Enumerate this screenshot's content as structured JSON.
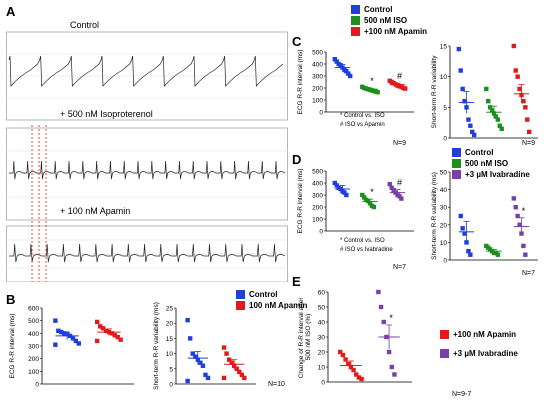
{
  "panels": {
    "A": {
      "label": "A",
      "traces": [
        "Control",
        "+ 500 nM Isoproterenol",
        "+ 100 nM Apamin"
      ]
    },
    "B": {
      "label": "B"
    },
    "C": {
      "label": "C"
    },
    "D": {
      "label": "D"
    },
    "E": {
      "label": "E"
    }
  },
  "legends": {
    "B": [
      {
        "label": "Control",
        "color": "#1f3fd8"
      },
      {
        "label": "100 nM Apamin",
        "color": "#e01b1b"
      }
    ],
    "C": [
      {
        "label": "Control",
        "color": "#1f3fd8"
      },
      {
        "label": "500 nM ISO",
        "color": "#1c8f1c"
      },
      {
        "label": "+100 nM Apamin",
        "color": "#e01b1b"
      }
    ],
    "D": [
      {
        "label": "Control",
        "color": "#1f3fd8"
      },
      {
        "label": "500 nM ISO",
        "color": "#1c8f1c"
      },
      {
        "label": "+3 µM Ivabradine",
        "color": "#7a3fa8"
      }
    ],
    "E": [
      {
        "label": "+100 nM Apamin",
        "color": "#e01b1b"
      },
      {
        "label": "+3 µM Ivabradine",
        "color": "#7a3fa8"
      }
    ]
  },
  "notes": {
    "C1": "* Control vs. ISO",
    "C2": "# ISO vs Apamin",
    "Cn1": "N=9",
    "Cn2": "N=9",
    "D1": "* Control vs. ISO",
    "D2": "# ISO vs Ivabradine",
    "Dn1": "N=7",
    "Dn2": "N=7",
    "Bn": "N=10",
    "En": "N=9-7"
  },
  "chart_data": [
    {
      "id": "B1",
      "type": "scatter",
      "ylabel": "ECG R-R interval (ms)",
      "ylim": [
        0,
        600
      ],
      "yticks": [
        0,
        100,
        200,
        300,
        400,
        500,
        600
      ],
      "groups": [
        {
          "color": "#1f3fd8",
          "values": [
            500,
            420,
            410,
            400,
            395,
            380,
            360,
            340,
            320,
            310
          ],
          "mean": 380,
          "sem": 30
        },
        {
          "color": "#e01b1b",
          "values": [
            490,
            455,
            440,
            420,
            410,
            400,
            385,
            370,
            350,
            340
          ],
          "mean": 410,
          "sem": 25
        }
      ]
    },
    {
      "id": "B2",
      "type": "scatter",
      "ylabel": "Short-term R-R variability (ms)",
      "ylim": [
        0,
        25
      ],
      "yticks": [
        0,
        5,
        10,
        15,
        20,
        25
      ],
      "groups": [
        {
          "color": "#1f3fd8",
          "values": [
            21,
            15,
            10,
            9,
            8,
            7,
            6,
            3,
            2,
            1
          ],
          "mean": 8.5,
          "sem": 2.2
        },
        {
          "color": "#e01b1b",
          "values": [
            12,
            10,
            8,
            7,
            6,
            5,
            4,
            3,
            2,
            2
          ],
          "mean": 6.5,
          "sem": 1.5
        }
      ]
    },
    {
      "id": "C1",
      "type": "scatter",
      "ylabel": "ECG R-R interval (ms)",
      "ylim": [
        0,
        500
      ],
      "yticks": [
        0,
        100,
        200,
        300,
        400,
        500
      ],
      "groups": [
        {
          "color": "#1f3fd8",
          "values": [
            440,
            420,
            400,
            390,
            370,
            350,
            340,
            320,
            300
          ],
          "mean": 370,
          "sem": 25,
          "sig": ""
        },
        {
          "color": "#1c8f1c",
          "values": [
            210,
            200,
            195,
            190,
            185,
            180,
            175,
            170,
            165
          ],
          "mean": 190,
          "sem": 10,
          "sig": "*"
        },
        {
          "color": "#e01b1b",
          "values": [
            260,
            250,
            240,
            230,
            220,
            215,
            210,
            200,
            195
          ],
          "mean": 228,
          "sem": 12,
          "sig": "#"
        }
      ]
    },
    {
      "id": "C2",
      "type": "scatter",
      "ylabel": "Short-term R-R variability",
      "ylim": [
        0,
        15
      ],
      "yticks": [
        0,
        5,
        10,
        15
      ],
      "groups": [
        {
          "color": "#1f3fd8",
          "values": [
            14.5,
            11,
            8,
            6,
            5,
            3,
            2,
            1,
            0.5
          ],
          "mean": 5.8,
          "sem": 1.8
        },
        {
          "color": "#1c8f1c",
          "values": [
            8,
            6,
            5,
            4.5,
            4,
            3.5,
            3,
            2,
            1.5
          ],
          "mean": 4.2,
          "sem": 1.0
        },
        {
          "color": "#e01b1b",
          "values": [
            15,
            11,
            10,
            8,
            7,
            6,
            5,
            3,
            1
          ],
          "mean": 7.2,
          "sem": 1.5
        }
      ]
    },
    {
      "id": "D1",
      "type": "scatter",
      "ylabel": "ECG R-R interval (ms)",
      "ylim": [
        0,
        500
      ],
      "yticks": [
        0,
        100,
        200,
        300,
        400,
        500
      ],
      "groups": [
        {
          "color": "#1f3fd8",
          "values": [
            400,
            380,
            360,
            350,
            330,
            320,
            300
          ],
          "mean": 350,
          "sem": 30,
          "sig": ""
        },
        {
          "color": "#1c8f1c",
          "values": [
            300,
            280,
            260,
            250,
            230,
            210,
            200
          ],
          "mean": 245,
          "sem": 20,
          "sig": "*"
        },
        {
          "color": "#7a3fa8",
          "values": [
            390,
            360,
            340,
            320,
            300,
            290,
            270
          ],
          "mean": 320,
          "sem": 25,
          "sig": "#"
        }
      ]
    },
    {
      "id": "D2",
      "type": "scatter",
      "ylabel": "Short-term R-R variability (ms)",
      "ylim": [
        0,
        50
      ],
      "yticks": [
        0,
        10,
        20,
        30,
        40,
        50
      ],
      "groups": [
        {
          "color": "#1f3fd8",
          "values": [
            48,
            25,
            18,
            15,
            10,
            5,
            3
          ],
          "mean": 16,
          "sem": 6,
          "sig": ""
        },
        {
          "color": "#1c8f1c",
          "values": [
            8,
            7,
            6,
            5,
            4,
            4,
            3
          ],
          "mean": 5,
          "sem": 1,
          "sig": ""
        },
        {
          "color": "#7a3fa8",
          "values": [
            35,
            30,
            25,
            20,
            15,
            8,
            3
          ],
          "mean": 19,
          "sem": 5,
          "sig": "*"
        }
      ]
    },
    {
      "id": "E",
      "type": "scatter",
      "ylabel": "Change of R-R interval after 500 nM ISO (%)",
      "ylim": [
        0,
        60
      ],
      "yticks": [
        0,
        10,
        20,
        30,
        40,
        50,
        60
      ],
      "groups": [
        {
          "color": "#e01b1b",
          "values": [
            20,
            18,
            15,
            12,
            10,
            8,
            5,
            3,
            2
          ],
          "mean": 11,
          "sem": 3,
          "sig": ""
        },
        {
          "color": "#7a3fa8",
          "values": [
            60,
            50,
            40,
            30,
            20,
            10,
            5
          ],
          "mean": 30,
          "sem": 8,
          "sig": "*"
        }
      ]
    }
  ]
}
